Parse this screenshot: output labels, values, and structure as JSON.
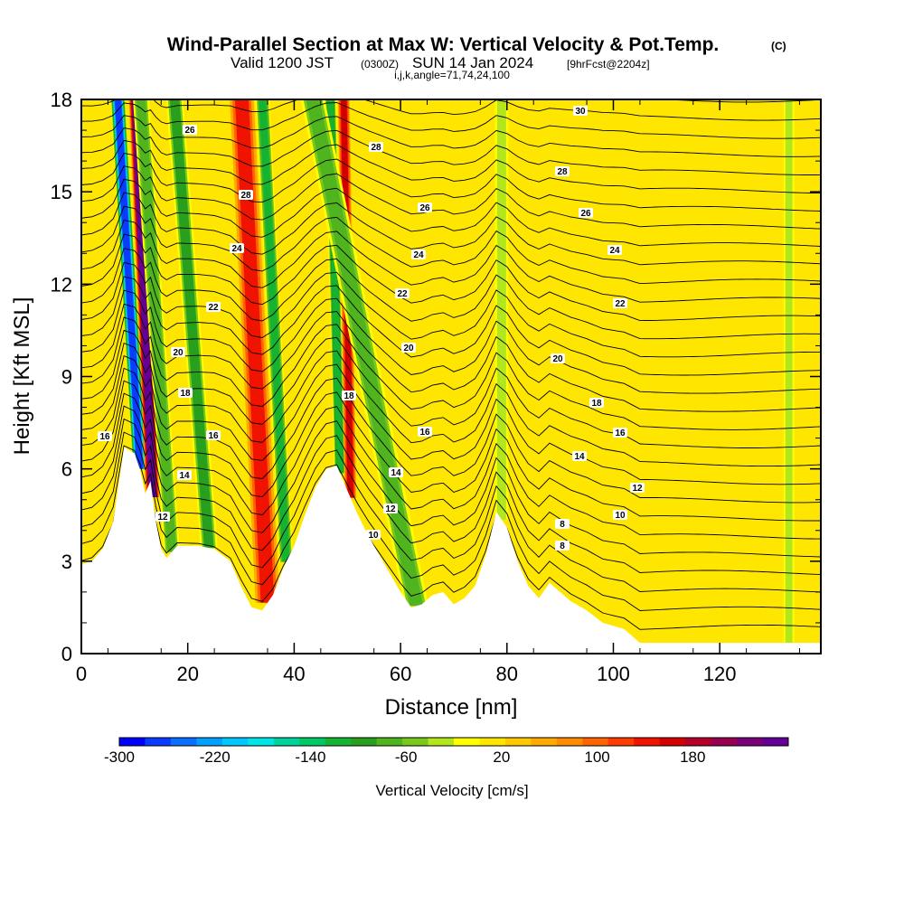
{
  "title": {
    "main": "Wind-Parallel Section at Max W: Vertical Velocity & Pot.Temp.",
    "copyright": "(C)",
    "valid_prefix": "Valid 1200 JST",
    "valid_utc": "(0300Z)",
    "valid_date": "SUN 14 Jan 2024",
    "forecast": "[9hrFcst@2204z]",
    "params": "i,j,k,angle=71,74,24,100"
  },
  "chart_data": {
    "type": "heatmap",
    "xlabel": "Distance [nm]",
    "ylabel": "Height [Kft MSL]",
    "xlim": [
      0,
      139
    ],
    "ylim": [
      0,
      18
    ],
    "x_ticks": [
      "0",
      "20",
      "40",
      "60",
      "80",
      "100",
      "120"
    ],
    "y_ticks": [
      "0",
      "3",
      "6",
      "9",
      "12",
      "15",
      "18"
    ],
    "colorbar": {
      "label": "Vertical Velocity [cm/s]",
      "tick_labels": [
        "-300",
        "-220",
        "-140",
        "-60",
        "20",
        "100",
        "180"
      ],
      "range": [
        -300,
        260
      ],
      "step": 20,
      "colors": [
        "#0000ff",
        "#0a3cff",
        "#0a6eff",
        "#00a0ff",
        "#00c8ff",
        "#00e6e6",
        "#00d29b",
        "#00c864",
        "#14b432",
        "#28a01e",
        "#50b41e",
        "#78c81e",
        "#b4e61e",
        "#ffff00",
        "#ffe600",
        "#ffc800",
        "#ffaa00",
        "#ff8c00",
        "#ff6400",
        "#ff3c00",
        "#f01400",
        "#d20000",
        "#b40028",
        "#960050",
        "#780078",
        "#640096"
      ]
    },
    "theta_contour_labels": [
      "8",
      "8",
      "10",
      "10",
      "12",
      "12",
      "12",
      "14",
      "14",
      "14",
      "16",
      "16",
      "16",
      "16",
      "18",
      "18",
      "18",
      "20",
      "20",
      "20",
      "22",
      "22",
      "22",
      "24",
      "24",
      "24",
      "26",
      "26",
      "26",
      "28",
      "28",
      "28",
      "30"
    ],
    "terrain_kft": [
      [
        0,
        2.9
      ],
      [
        2,
        3.0
      ],
      [
        4,
        3.4
      ],
      [
        6,
        4.3
      ],
      [
        8,
        6.7
      ],
      [
        10,
        6.5
      ],
      [
        11,
        6.0
      ],
      [
        12,
        5.2
      ],
      [
        13,
        5.6
      ],
      [
        14,
        4.3
      ],
      [
        15,
        3.4
      ],
      [
        16,
        3.1
      ],
      [
        18,
        3.5
      ],
      [
        22,
        3.5
      ],
      [
        25,
        3.4
      ],
      [
        28,
        3.0
      ],
      [
        30,
        2.2
      ],
      [
        32,
        1.5
      ],
      [
        34,
        1.4
      ],
      [
        36,
        1.9
      ],
      [
        38,
        2.8
      ],
      [
        40,
        3.5
      ],
      [
        42,
        4.5
      ],
      [
        44,
        5.4
      ],
      [
        46,
        6.0
      ],
      [
        48,
        6.1
      ],
      [
        50,
        5.3
      ],
      [
        52,
        4.5
      ],
      [
        54,
        3.8
      ],
      [
        56,
        3.2
      ],
      [
        58,
        2.6
      ],
      [
        60,
        2.0
      ],
      [
        62,
        1.5
      ],
      [
        64,
        1.6
      ],
      [
        66,
        1.9
      ],
      [
        68,
        2.0
      ],
      [
        70,
        1.6
      ],
      [
        72,
        1.8
      ],
      [
        74,
        2.2
      ],
      [
        76,
        3.2
      ],
      [
        78,
        4.6
      ],
      [
        80,
        4.1
      ],
      [
        82,
        3.0
      ],
      [
        84,
        2.2
      ],
      [
        86,
        1.8
      ],
      [
        88,
        2.3
      ],
      [
        90,
        2.0
      ],
      [
        92,
        1.7
      ],
      [
        95,
        1.4
      ],
      [
        98,
        1.0
      ],
      [
        102,
        0.8
      ],
      [
        105,
        0.35
      ],
      [
        110,
        0.35
      ],
      [
        139,
        0.35
      ]
    ],
    "vertical_velocity_bands": [
      {
        "x_nm": 11.0,
        "w_cms": -280,
        "width_nm": 2.8,
        "slope_nm_per_kft": -0.35
      },
      {
        "x_nm": 13.4,
        "w_cms": 220,
        "width_nm": 2.6,
        "slope_nm_per_kft": -0.25
      },
      {
        "x_nm": 17.0,
        "w_cms": -100,
        "width_nm": 3.0,
        "slope_nm_per_kft": -0.4
      },
      {
        "x_nm": 24.0,
        "w_cms": -110,
        "width_nm": 3.2,
        "slope_nm_per_kft": -0.45
      },
      {
        "x_nm": 35.0,
        "w_cms": 110,
        "width_nm": 4.5,
        "slope_nm_per_kft": -0.3
      },
      {
        "x_nm": 38.5,
        "w_cms": -130,
        "width_nm": 2.6,
        "slope_nm_per_kft": -0.3
      },
      {
        "x_nm": 48.6,
        "w_cms": -140,
        "width_nm": 2.2,
        "slope_nm_per_kft": -0.15
      },
      {
        "x_nm": 50.6,
        "w_cms": 130,
        "width_nm": 2.2,
        "slope_nm_per_kft": -0.1
      },
      {
        "x_nm": 63.0,
        "w_cms": -100,
        "width_nm": 4.5,
        "slope_nm_per_kft": -1.2
      },
      {
        "x_nm": 79.0,
        "w_cms": -60,
        "width_nm": 2.5,
        "slope_nm_per_kft": 0.0
      },
      {
        "x_nm": 133.0,
        "w_cms": -60,
        "width_nm": 2.0,
        "slope_nm_per_kft": 0.0
      }
    ]
  }
}
